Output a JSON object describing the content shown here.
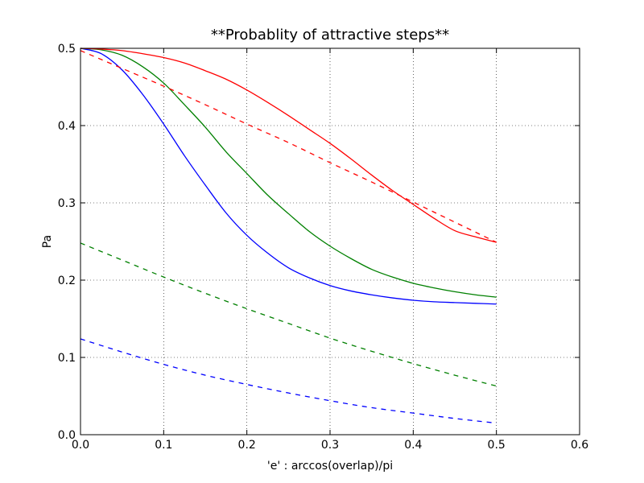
{
  "chart_data": {
    "type": "line",
    "title": "**Probablity of attractive steps**",
    "xlabel": "'e' : arccos(overlap)/pi",
    "ylabel": "Pa",
    "xlim": [
      0.0,
      0.6
    ],
    "ylim": [
      0.0,
      0.5
    ],
    "xticks": [
      "0.0",
      "0.1",
      "0.2",
      "0.3",
      "0.4",
      "0.5",
      "0.6"
    ],
    "yticks": [
      "0.0",
      "0.1",
      "0.2",
      "0.3",
      "0.4",
      "0.5"
    ],
    "grid": true,
    "series": [
      {
        "color": "#0000ff",
        "style": "solid",
        "x": [
          0.0,
          0.025,
          0.05,
          0.075,
          0.1,
          0.125,
          0.15,
          0.175,
          0.2,
          0.225,
          0.25,
          0.275,
          0.3,
          0.325,
          0.35,
          0.375,
          0.4,
          0.425,
          0.45,
          0.475,
          0.5
        ],
        "y": [
          0.5,
          0.493,
          0.472,
          0.44,
          0.402,
          0.361,
          0.323,
          0.287,
          0.258,
          0.235,
          0.216,
          0.203,
          0.193,
          0.186,
          0.181,
          0.177,
          0.174,
          0.172,
          0.171,
          0.17,
          0.169
        ]
      },
      {
        "color": "#008000",
        "style": "solid",
        "x": [
          0.0,
          0.025,
          0.05,
          0.075,
          0.1,
          0.125,
          0.15,
          0.175,
          0.2,
          0.225,
          0.25,
          0.275,
          0.3,
          0.325,
          0.35,
          0.375,
          0.4,
          0.425,
          0.45,
          0.475,
          0.5
        ],
        "y": [
          0.5,
          0.498,
          0.491,
          0.476,
          0.455,
          0.427,
          0.398,
          0.366,
          0.338,
          0.31,
          0.286,
          0.263,
          0.244,
          0.228,
          0.214,
          0.204,
          0.196,
          0.19,
          0.185,
          0.181,
          0.178
        ]
      },
      {
        "color": "#ff0000",
        "style": "solid",
        "x": [
          0.0,
          0.025,
          0.05,
          0.075,
          0.1,
          0.125,
          0.15,
          0.175,
          0.2,
          0.225,
          0.25,
          0.275,
          0.3,
          0.325,
          0.35,
          0.375,
          0.4,
          0.425,
          0.45,
          0.475,
          0.5
        ],
        "y": [
          0.5,
          0.499,
          0.497,
          0.493,
          0.488,
          0.481,
          0.471,
          0.46,
          0.446,
          0.43,
          0.413,
          0.395,
          0.377,
          0.357,
          0.336,
          0.316,
          0.298,
          0.28,
          0.264,
          0.256,
          0.249
        ]
      },
      {
        "color": "#0000ff",
        "style": "dashed",
        "x": [
          0.0,
          0.05,
          0.1,
          0.15,
          0.2,
          0.25,
          0.3,
          0.35,
          0.4,
          0.45,
          0.5
        ],
        "y": [
          0.124,
          0.107,
          0.091,
          0.077,
          0.065,
          0.054,
          0.044,
          0.035,
          0.028,
          0.021,
          0.015
        ]
      },
      {
        "color": "#008000",
        "style": "dashed",
        "x": [
          0.0,
          0.05,
          0.1,
          0.15,
          0.2,
          0.25,
          0.3,
          0.35,
          0.4,
          0.45,
          0.5
        ],
        "y": [
          0.248,
          0.226,
          0.204,
          0.183,
          0.163,
          0.144,
          0.125,
          0.108,
          0.092,
          0.077,
          0.063
        ]
      },
      {
        "color": "#ff0000",
        "style": "dashed",
        "x": [
          0.0,
          0.05,
          0.1,
          0.15,
          0.2,
          0.25,
          0.3,
          0.35,
          0.4,
          0.45,
          0.5
        ],
        "y": [
          0.497,
          0.474,
          0.451,
          0.427,
          0.402,
          0.378,
          0.352,
          0.327,
          0.301,
          0.275,
          0.249
        ]
      }
    ]
  }
}
